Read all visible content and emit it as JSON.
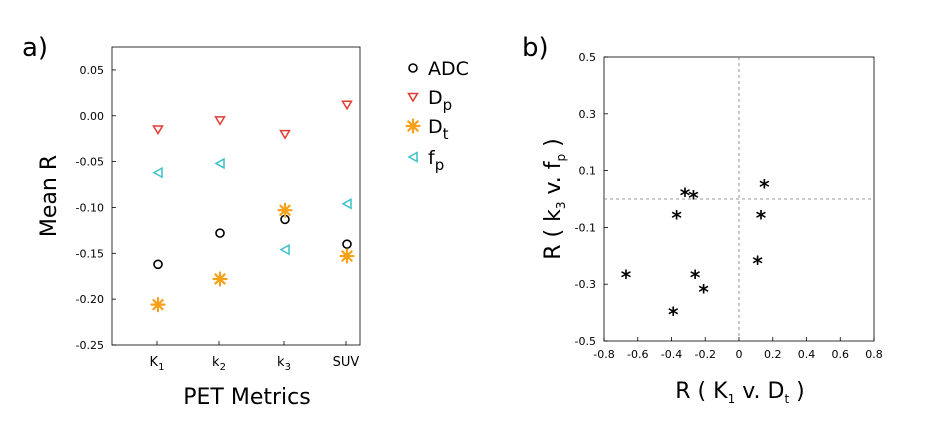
{
  "chart_data": [
    {
      "panel_label": "a)",
      "type": "scatter",
      "xlabel": "PET Metrics",
      "ylabel": "Mean R",
      "categories": [
        "K",
        "k",
        "k",
        "SUV"
      ],
      "category_subscripts": [
        "1",
        "2",
        "3",
        ""
      ],
      "ylim": [
        -0.25,
        0.075
      ],
      "yticks": [
        "0.05",
        "0.00",
        "-0.05",
        "-0.10",
        "-0.15",
        "-0.20",
        "-0.25"
      ],
      "ytick_values": [
        0.05,
        0.0,
        -0.05,
        -0.1,
        -0.15,
        -0.2,
        -0.25
      ],
      "grid": false,
      "legend_position": "right",
      "series": [
        {
          "name": "ADC",
          "subscript": "",
          "marker": "circle",
          "color": "#000000",
          "values": [
            -0.162,
            -0.128,
            -0.113,
            -0.14
          ]
        },
        {
          "name": "D",
          "subscript": "p",
          "marker": "triangle-down",
          "color": "#e03c31",
          "values": [
            -0.015,
            -0.005,
            -0.02,
            0.012
          ]
        },
        {
          "name": "D",
          "subscript": "t",
          "marker": "asterisk",
          "color": "#f7a11a",
          "values": [
            -0.206,
            -0.178,
            -0.103,
            -0.153
          ]
        },
        {
          "name": "f",
          "subscript": "p",
          "marker": "triangle-left",
          "color": "#3cc2c8",
          "values": [
            -0.062,
            -0.052,
            -0.146,
            -0.096
          ]
        }
      ]
    },
    {
      "panel_label": "b)",
      "type": "scatter",
      "marker": "*",
      "xlabel": {
        "main": "R ( K",
        "sub1": "1",
        "mid": " v. D",
        "sub2": "t",
        "end": " )"
      },
      "ylabel": {
        "main": "R ( k",
        "sub1": "3",
        "mid": " v. f",
        "sub2": "p",
        "end": " )"
      },
      "xlim": [
        -0.8,
        0.8
      ],
      "ylim": [
        -0.5,
        0.5
      ],
      "xticks": [
        "-0.8",
        "-0.6",
        "-0.4",
        "-0.2",
        "0",
        "0.2",
        "0.4",
        "0.6",
        "0.8"
      ],
      "xtick_values": [
        -0.8,
        -0.6,
        -0.4,
        -0.2,
        0,
        0.2,
        0.4,
        0.6,
        0.8
      ],
      "yticks": [
        "0.5",
        "0.3",
        "0.1",
        "-0.1",
        "-0.3",
        "-0.5"
      ],
      "ytick_values": [
        0.5,
        0.3,
        0.1,
        -0.1,
        -0.3,
        -0.5
      ],
      "reference_lines": {
        "x": 0,
        "y": 0,
        "style": "dashed"
      },
      "points": [
        {
          "x": -0.32,
          "y": 0.02
        },
        {
          "x": -0.27,
          "y": 0.01
        },
        {
          "x": 0.15,
          "y": 0.05
        },
        {
          "x": -0.37,
          "y": -0.06
        },
        {
          "x": 0.13,
          "y": -0.06
        },
        {
          "x": -0.67,
          "y": -0.27
        },
        {
          "x": -0.26,
          "y": -0.27
        },
        {
          "x": -0.21,
          "y": -0.32
        },
        {
          "x": 0.11,
          "y": -0.22
        },
        {
          "x": -0.39,
          "y": -0.4
        }
      ]
    }
  ]
}
